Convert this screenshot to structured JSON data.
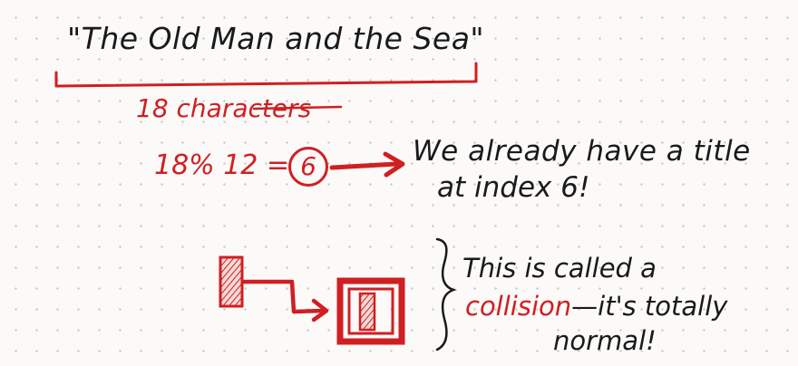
{
  "title": "\"The Old Man and the Sea\"",
  "char_count": "18 characters",
  "modulo": {
    "expression": "18% 12 =",
    "result": "6"
  },
  "message1": {
    "line1": "We already have a title",
    "line2": "at index 6!"
  },
  "message2": {
    "line1": "This is called a",
    "highlight": "collision",
    "rest": "—it's totally",
    "line3": "normal!"
  },
  "colors": {
    "ink_black": "#1a1a1a",
    "ink_red": "#d01f22",
    "paper": "#fbfaf8"
  }
}
